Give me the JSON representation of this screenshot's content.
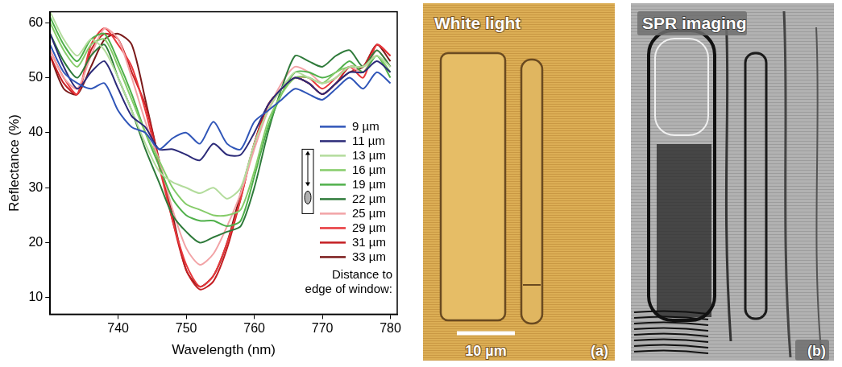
{
  "chart_data": {
    "type": "line",
    "x_label": "Wavelength (nm)",
    "y_label": "Reflectance (%)",
    "xlim": [
      730,
      781
    ],
    "xticks": [
      740,
      750,
      760,
      770,
      780
    ],
    "ylim": [
      7,
      62
    ],
    "yticks": [
      10,
      20,
      30,
      40,
      50,
      60
    ],
    "grid": false,
    "legend": "right",
    "annotation": "Distance to\nedge of window:",
    "x": [
      730,
      732,
      734,
      736,
      738,
      740,
      742,
      744,
      746,
      748,
      750,
      752,
      754,
      756,
      758,
      760,
      762,
      764,
      766,
      768,
      770,
      772,
      774,
      776,
      778,
      780
    ],
    "series": [
      {
        "name": "9 µm",
        "color": "#2f55b8",
        "values": [
          56,
          51,
          49,
          48,
          49,
          44,
          41,
          40,
          37,
          39,
          40,
          38,
          42,
          38,
          37,
          42,
          44,
          46,
          48,
          47,
          46,
          48,
          50,
          48,
          51,
          49
        ]
      },
      {
        "name": "11 µm",
        "color": "#2b2a78",
        "values": [
          58,
          52,
          48,
          51,
          53,
          48,
          43,
          41,
          37,
          37,
          36,
          35,
          38,
          36,
          36,
          40,
          45,
          48,
          50,
          49,
          47,
          49,
          51,
          51,
          53,
          51
        ]
      },
      {
        "name": "13 µm",
        "color": "#b3dc9c",
        "values": [
          62,
          57,
          54,
          57,
          55,
          50,
          44,
          38,
          33,
          31,
          30,
          29,
          30,
          28,
          30,
          38,
          44,
          48,
          51,
          50,
          49,
          50,
          52,
          52,
          54,
          52
        ]
      },
      {
        "name": "16 µm",
        "color": "#86cc6a",
        "values": [
          60,
          55,
          52,
          56,
          57,
          52,
          46,
          40,
          35,
          30,
          27,
          26,
          25,
          25,
          26,
          33,
          42,
          47,
          50,
          50,
          49,
          51,
          52,
          52,
          54,
          51
        ]
      },
      {
        "name": "19 µm",
        "color": "#4fb04a",
        "values": [
          61,
          56,
          53,
          57,
          58,
          53,
          47,
          40,
          34,
          28,
          25,
          24,
          24,
          23,
          24,
          32,
          41,
          47,
          51,
          51,
          50,
          51,
          53,
          51,
          54,
          50
        ]
      },
      {
        "name": "22 µm",
        "color": "#2e7a3a",
        "values": [
          58,
          53,
          50,
          54,
          56,
          50,
          44,
          37,
          31,
          25,
          22,
          20,
          21,
          22,
          23,
          30,
          40,
          48,
          54,
          53,
          52,
          54,
          55,
          52,
          55,
          52
        ]
      },
      {
        "name": "25 µm",
        "color": "#f2a3a6",
        "values": [
          55,
          50,
          48,
          54,
          59,
          57,
          50,
          42,
          35,
          26,
          19,
          16,
          18,
          23,
          29,
          37,
          44,
          49,
          52,
          51,
          49,
          50,
          52,
          51,
          55,
          52
        ]
      },
      {
        "name": "29 µm",
        "color": "#e8383c",
        "values": [
          55,
          50,
          47,
          56,
          59,
          56,
          52,
          44,
          34,
          24,
          16,
          12,
          14,
          20,
          28,
          38,
          44,
          48,
          50,
          50,
          48,
          50,
          52,
          50,
          56,
          54
        ]
      },
      {
        "name": "31 µm",
        "color": "#c41e22",
        "values": [
          54,
          49,
          47,
          55,
          58,
          57,
          51,
          45,
          35,
          24,
          15,
          11.5,
          13,
          19,
          28,
          38,
          45,
          48,
          50,
          49,
          47,
          49,
          52,
          52,
          56,
          54
        ]
      },
      {
        "name": "33 µm",
        "color": "#7a1a1a",
        "values": [
          54,
          48,
          47,
          52,
          57,
          58,
          56,
          46,
          35,
          25,
          15,
          12,
          14,
          20,
          29,
          38,
          45,
          48,
          50,
          49,
          47,
          49,
          51,
          52,
          56,
          53
        ]
      }
    ]
  },
  "images": [
    {
      "title": "White light",
      "scale_bar": "10 µm",
      "letter": "(a)"
    },
    {
      "title": "SPR imaging",
      "letter": "(b)"
    }
  ]
}
